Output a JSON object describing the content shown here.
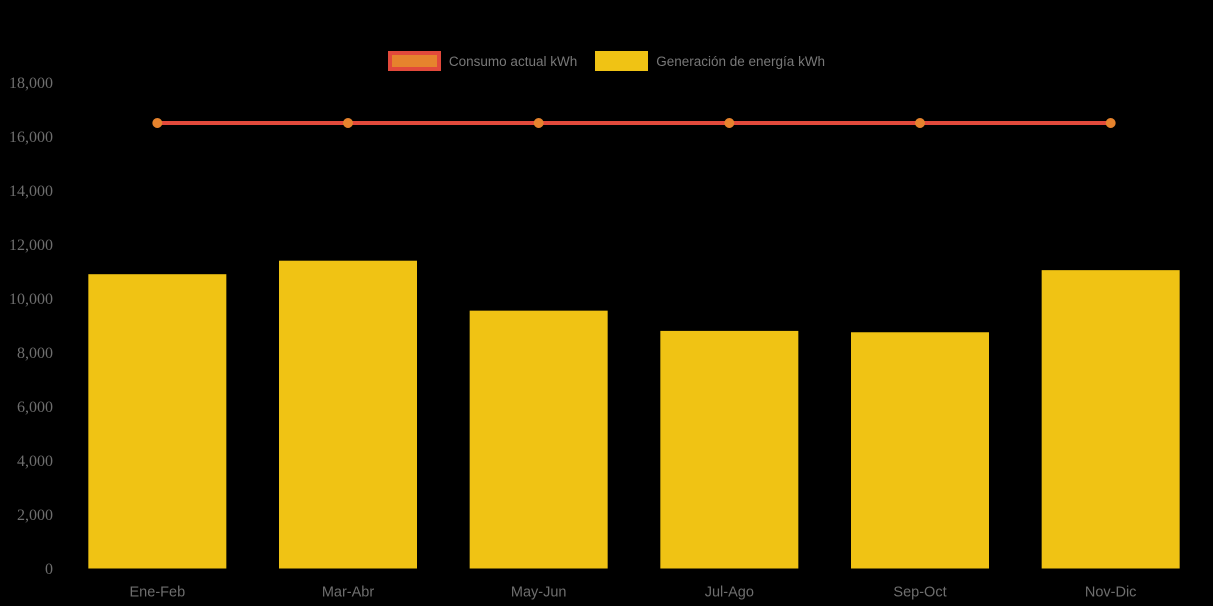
{
  "chart_data": {
    "type": "bar",
    "title": "",
    "categories": [
      "Ene-Feb",
      "Mar-Abr",
      "May-Jun",
      "Jul-Ago",
      "Sep-Oct",
      "Nov-Dic"
    ],
    "series": [
      {
        "name": "Consumo actual kWh",
        "type": "line",
        "color": "#E2493B",
        "marker_color": "#E6832D",
        "values": [
          16500,
          16500,
          16500,
          16500,
          16500,
          16500
        ]
      },
      {
        "name": "Generación de energía kWh",
        "type": "bar",
        "color": "#F0C314",
        "values": [
          10900,
          11400,
          9550,
          8800,
          8750,
          11050
        ]
      }
    ],
    "ylim": [
      0,
      18000
    ],
    "ytick_step": 2000,
    "ytick_labels": [
      "0",
      "2,000",
      "4,000",
      "6,000",
      "8,000",
      "10,000",
      "12,000",
      "14,000",
      "16,000",
      "18,000"
    ],
    "grid": false,
    "legend_position": "top-center",
    "background_color": "#000000",
    "axis_text_color": "#6E6E6E"
  },
  "legend": {
    "consumo_label": "Consumo actual kWh",
    "generacion_label": "Generación de energía kWh"
  }
}
